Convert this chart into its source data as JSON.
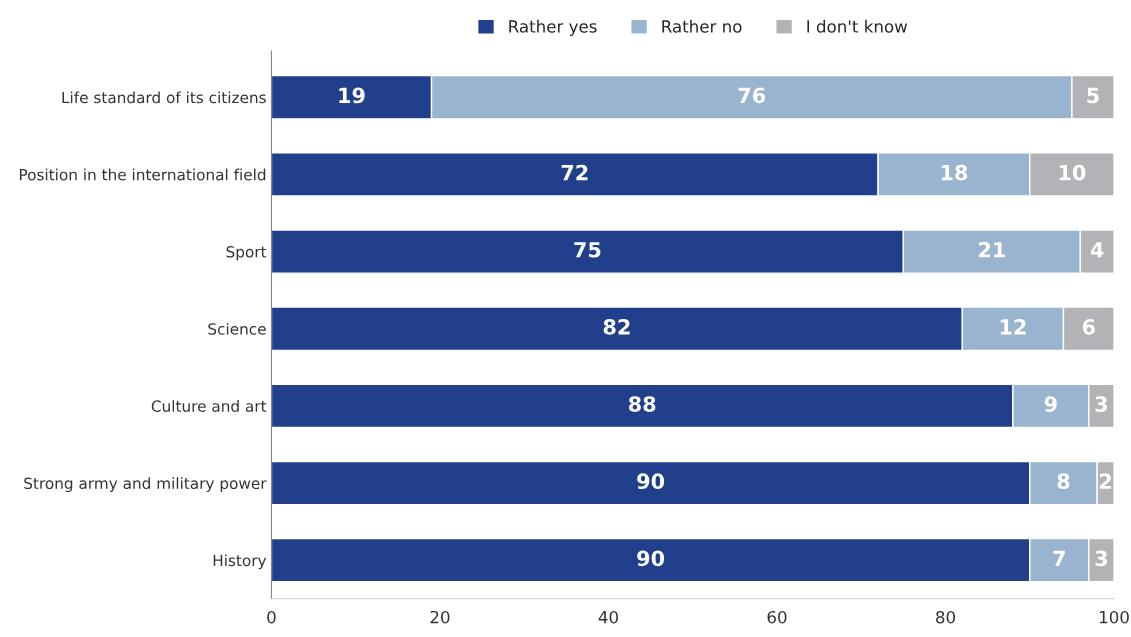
{
  "chart_data": {
    "type": "bar",
    "orientation": "horizontal",
    "stacked": true,
    "data_labels": true,
    "legend": "top",
    "grid": false,
    "categories": [
      "Life standard of its citizens",
      "Position in the international field",
      "Sport",
      "Science",
      "Culture and art",
      "Strong army and military power",
      "History"
    ],
    "series": [
      {
        "name": "Rather yes",
        "color": "#213f8b",
        "values": [
          19,
          72,
          75,
          82,
          88,
          90,
          90
        ]
      },
      {
        "name": "Rather no",
        "color": "#98b4cf",
        "values": [
          76,
          18,
          21,
          12,
          9,
          8,
          7
        ]
      },
      {
        "name": "I don't know",
        "color": "#b3b3b7",
        "values": [
          5,
          10,
          4,
          6,
          3,
          2,
          3
        ]
      }
    ],
    "xlim": [
      0,
      100
    ],
    "xticks": [
      0,
      20,
      40,
      60,
      80,
      100
    ]
  }
}
